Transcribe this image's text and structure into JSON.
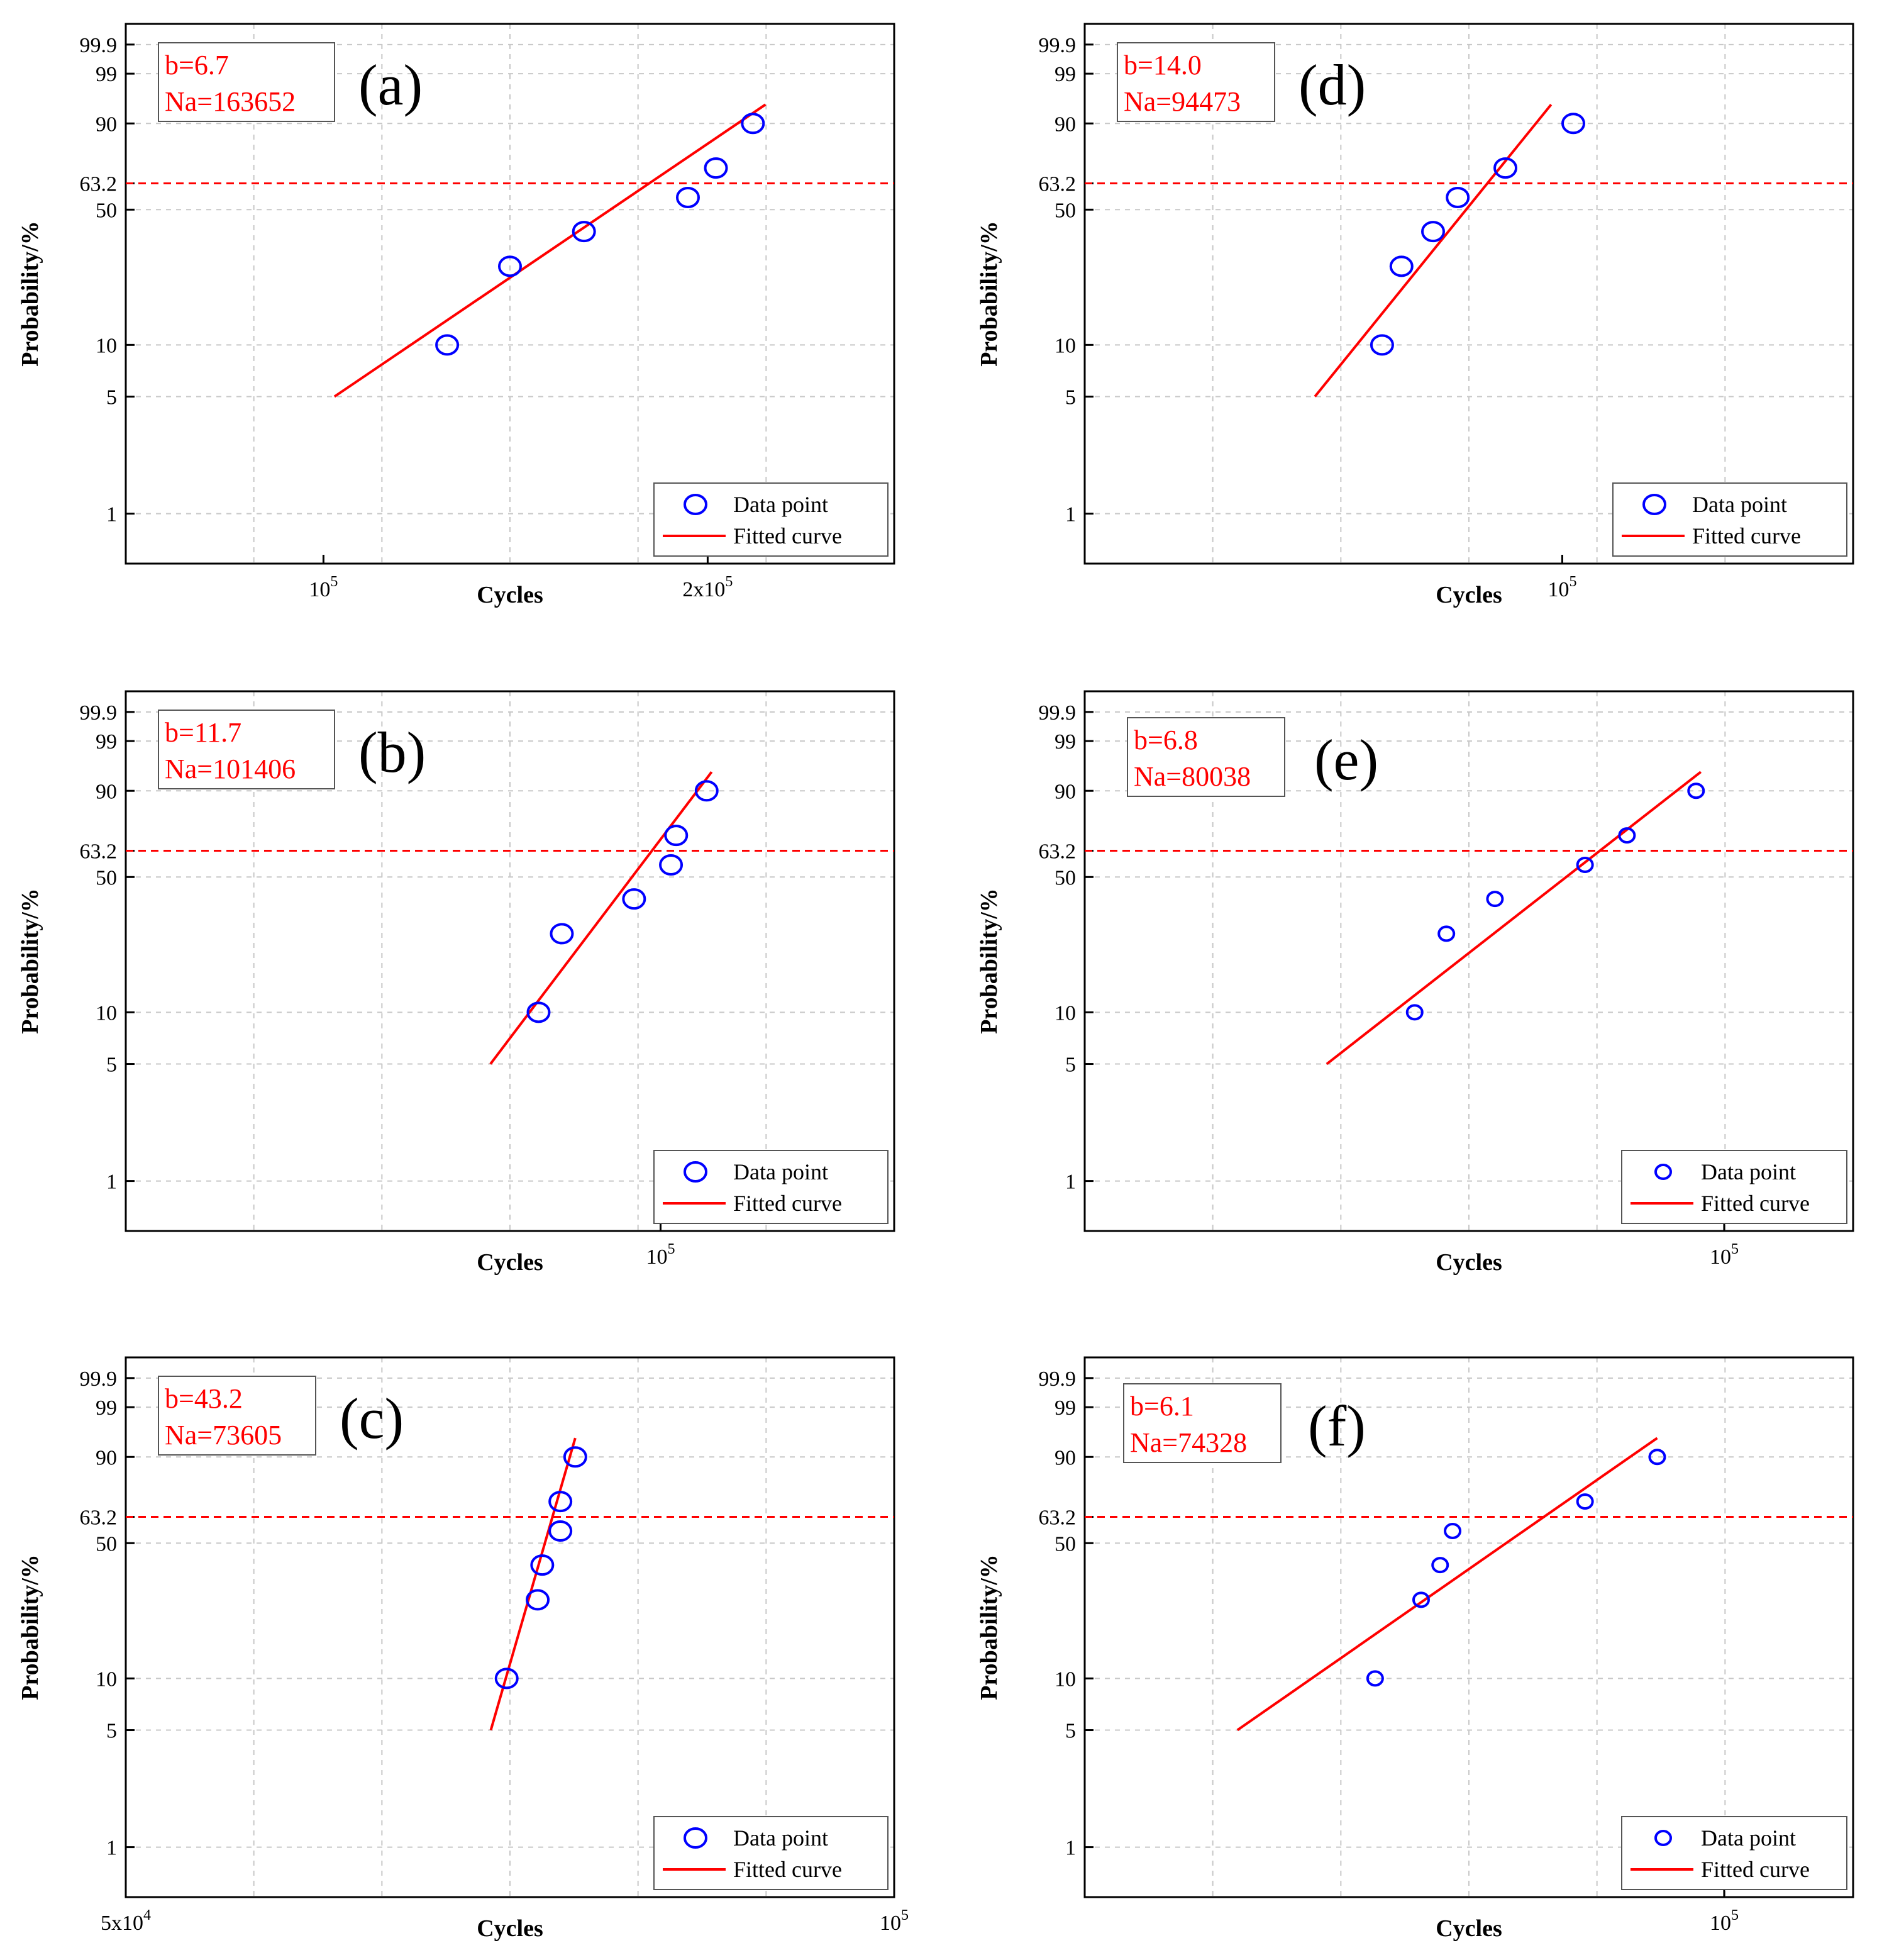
{
  "colors": {
    "data": "#0000ff",
    "fit": "#ff0000",
    "ref": "#ff0000",
    "grid": "#c8c8c8"
  },
  "y_ticks": [
    1,
    5,
    10,
    50,
    63.2,
    90,
    99,
    99.9
  ],
  "y_tick_labels": [
    "1",
    "5",
    "10",
    "50",
    "63.2",
    "90",
    "99",
    "99.9"
  ],
  "reference_line": {
    "probability": 63.2
  },
  "chart_data": [
    {
      "type": "scatter",
      "panel": "(a)",
      "b_label": "b=6.7",
      "na_label": "Na=163652",
      "xlabel": "Cycles",
      "ylabel": "Probability/%",
      "xlim": [
        70000,
        280000
      ],
      "ylim": [
        0.5,
        99.99
      ],
      "x_ticks": [
        100000,
        200000
      ],
      "x_tick_labels": [
        "10<tspan baseline-shift='super' font-size='24'>5</tspan>",
        "2x10<tspan baseline-shift='super' font-size='24'>5</tspan>"
      ],
      "x_tick_text": [
        "105",
        "2x105"
      ],
      "legend": [
        "Data point",
        "Fitted curve"
      ],
      "data_points": [
        {
          "x": 125000,
          "y": 10
        },
        {
          "x": 140000,
          "y": 27
        },
        {
          "x": 160000,
          "y": 40
        },
        {
          "x": 193000,
          "y": 56
        },
        {
          "x": 203000,
          "y": 71
        },
        {
          "x": 217000,
          "y": 90
        }
      ],
      "fitted_line": [
        {
          "x": 102000,
          "y": 5
        },
        {
          "x": 222000,
          "y": 95
        }
      ],
      "legend_style": "large"
    },
    {
      "type": "scatter",
      "panel": "(b)",
      "b_label": "b=11.7",
      "na_label": "Na=101406",
      "xlabel": "Cycles",
      "ylabel": "Probability/%",
      "xlim": [
        60000,
        125000
      ],
      "ylim": [
        0.5,
        99.99
      ],
      "x_ticks": [
        100000
      ],
      "x_tick_text": [
        "105"
      ],
      "legend": [
        "Data point",
        "Fitted curve"
      ],
      "data_points": [
        {
          "x": 89000,
          "y": 10
        },
        {
          "x": 91000,
          "y": 27
        },
        {
          "x": 97500,
          "y": 40
        },
        {
          "x": 101000,
          "y": 56
        },
        {
          "x": 101500,
          "y": 71
        },
        {
          "x": 104500,
          "y": 90
        }
      ],
      "fitted_line": [
        {
          "x": 85000,
          "y": 5
        },
        {
          "x": 105000,
          "y": 95
        }
      ],
      "legend_style": "large"
    },
    {
      "type": "scatter",
      "panel": "(c)",
      "b_label": "b=43.2",
      "na_label": "Na=73605",
      "xlabel": "Cycles",
      "ylabel": "Probability/%",
      "xlim": [
        50000,
        100000
      ],
      "ylim": [
        0.5,
        99.99
      ],
      "x_ticks": [
        50000,
        100000
      ],
      "x_tick_text": [
        "5x104",
        "105"
      ],
      "legend": [
        "Data point",
        "Fitted curve"
      ],
      "data_points": [
        {
          "x": 70500,
          "y": 10
        },
        {
          "x": 72500,
          "y": 27
        },
        {
          "x": 72800,
          "y": 40
        },
        {
          "x": 74000,
          "y": 56
        },
        {
          "x": 74000,
          "y": 71
        },
        {
          "x": 75000,
          "y": 90
        }
      ],
      "fitted_line": [
        {
          "x": 69500,
          "y": 5
        },
        {
          "x": 75000,
          "y": 95
        }
      ],
      "legend_style": "large"
    },
    {
      "type": "scatter",
      "panel": "(d)",
      "b_label": "b=14.0",
      "na_label": "Na=94473",
      "xlabel": "Cycles",
      "ylabel": "Probability/%",
      "xlim": [
        65000,
        130000
      ],
      "ylim": [
        0.5,
        99.99
      ],
      "x_ticks": [
        100000
      ],
      "x_tick_text": [
        "105"
      ],
      "legend": [
        "Data point",
        "Fitted curve"
      ],
      "data_points": [
        {
          "x": 85000,
          "y": 10
        },
        {
          "x": 86500,
          "y": 27
        },
        {
          "x": 89000,
          "y": 40
        },
        {
          "x": 91000,
          "y": 56
        },
        {
          "x": 95000,
          "y": 71
        },
        {
          "x": 101000,
          "y": 90
        }
      ],
      "fitted_line": [
        {
          "x": 80000,
          "y": 5
        },
        {
          "x": 99000,
          "y": 95
        }
      ],
      "legend_style": "large"
    },
    {
      "type": "scatter",
      "panel": "(e)",
      "b_label": "b=6.8",
      "na_label": "Na=80038",
      "xlabel": "Cycles",
      "ylabel": "Probability/%",
      "xlim": [
        50000,
        115000
      ],
      "ylim": [
        0.5,
        99.99
      ],
      "x_ticks": [
        100000
      ],
      "x_tick_text": [
        "105"
      ],
      "legend": [
        "Data point",
        "Fitted curve"
      ],
      "data_points": [
        {
          "x": 71500,
          "y": 10
        },
        {
          "x": 74000,
          "y": 27
        },
        {
          "x": 78000,
          "y": 40
        },
        {
          "x": 86000,
          "y": 56
        },
        {
          "x": 90000,
          "y": 71
        },
        {
          "x": 97000,
          "y": 90
        }
      ],
      "fitted_line": [
        {
          "x": 65000,
          "y": 5
        },
        {
          "x": 97500,
          "y": 95
        }
      ],
      "legend_style": "small"
    },
    {
      "type": "scatter",
      "panel": "(f)",
      "b_label": "b=6.1",
      "na_label": "Na=74328",
      "xlabel": "Cycles",
      "ylabel": "Probability/%",
      "xlim": [
        50000,
        115000
      ],
      "ylim": [
        0.5,
        99.99
      ],
      "x_ticks": [
        100000
      ],
      "x_tick_text": [
        "105"
      ],
      "legend": [
        "Data point",
        "Fitted curve"
      ],
      "data_points": [
        {
          "x": 68500,
          "y": 10
        },
        {
          "x": 72000,
          "y": 27
        },
        {
          "x": 73500,
          "y": 40
        },
        {
          "x": 74500,
          "y": 56
        },
        {
          "x": 86000,
          "y": 71
        },
        {
          "x": 93000,
          "y": 90
        }
      ],
      "fitted_line": [
        {
          "x": 59000,
          "y": 5
        },
        {
          "x": 93000,
          "y": 95
        }
      ],
      "legend_style": "small"
    }
  ]
}
